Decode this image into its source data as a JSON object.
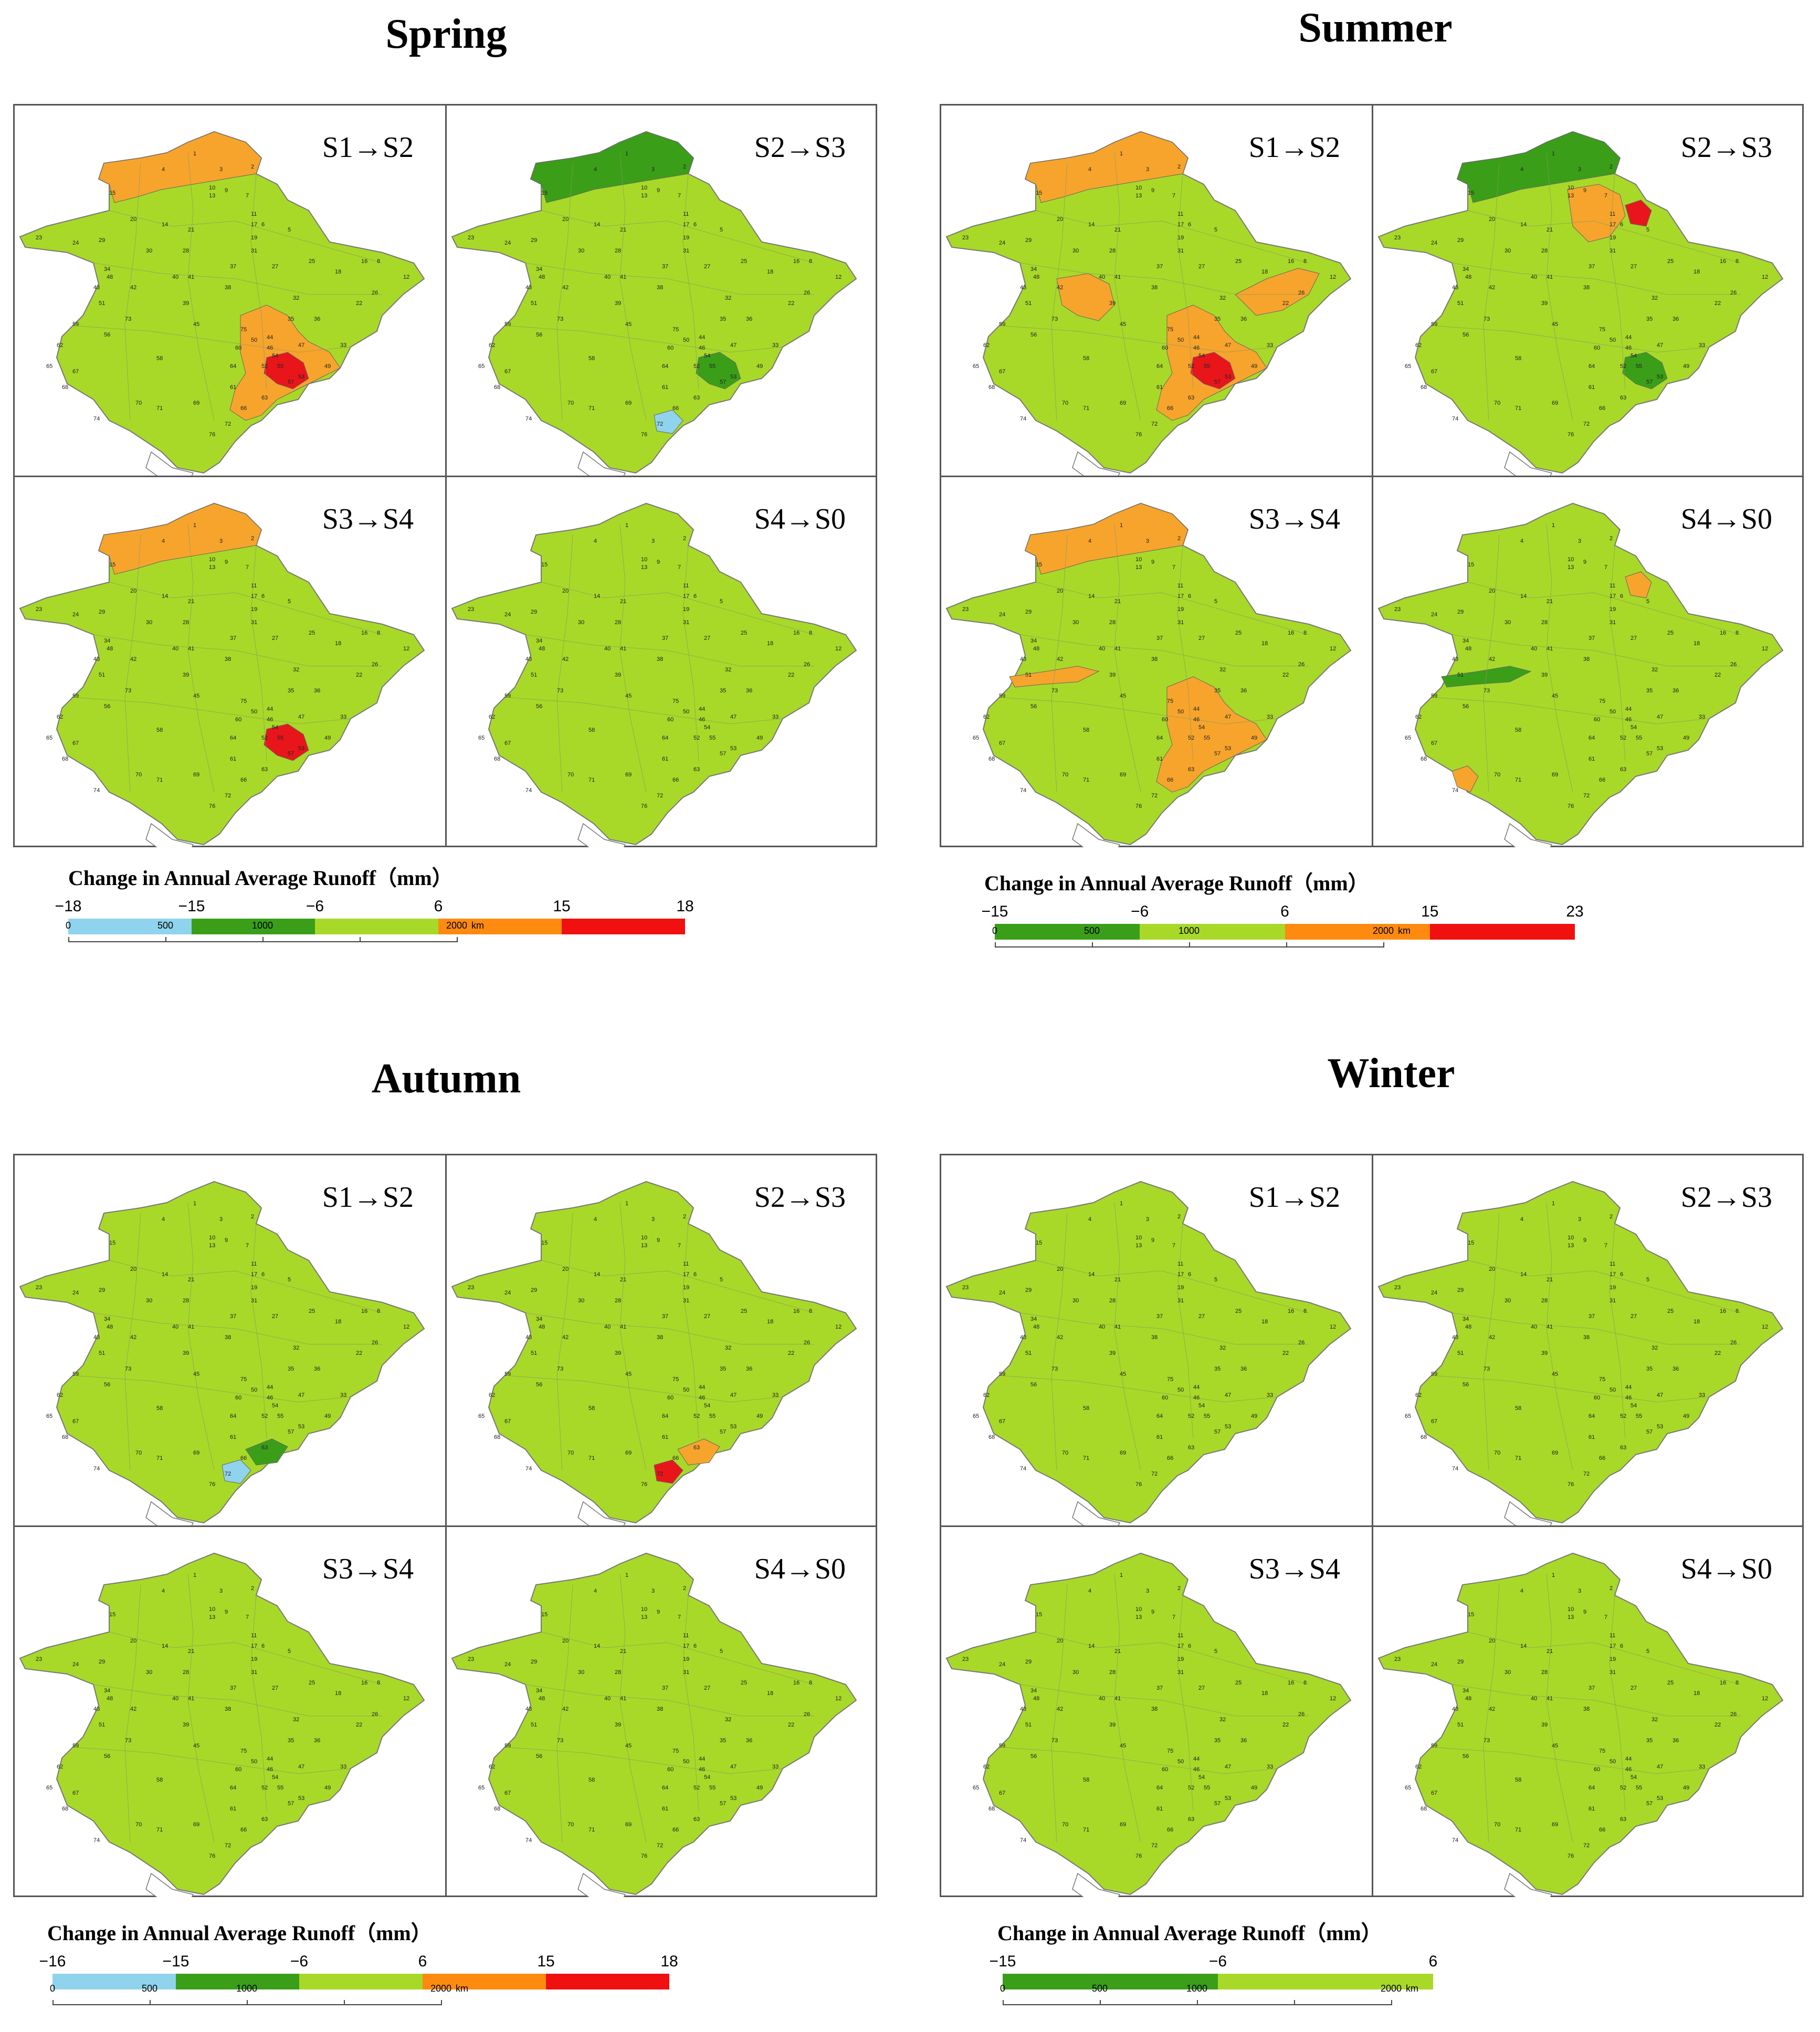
{
  "colors": {
    "light_blue": "#8fd3ec",
    "dark_green": "#3a9e18",
    "yellow_green": "#a8d828",
    "orange": "#f7a42c",
    "red": "#e8161b",
    "legend_orange": "#ff8a10",
    "legend_red": "#f01010",
    "outside": "#ffffff"
  },
  "legend_title": "Change in Annual Average Runoff（mm）",
  "scale_labels": [
    "0",
    "500",
    "1000",
    "2000",
    "km"
  ],
  "panel_labels": [
    "S1→S2",
    "S2→S3",
    "S3→S4",
    "S4→S0"
  ],
  "seasons": [
    {
      "name": "Spring",
      "legend": {
        "ticks": [
          "−18",
          "−15",
          "−6",
          "6",
          "15",
          "18"
        ],
        "segments": [
          "light_blue",
          "dark_green",
          "yellow_green",
          "legend_orange",
          "legend_red"
        ]
      },
      "panels": [
        {
          "label": "S1→S2",
          "highlights": [
            {
              "cls": "orange",
              "region": "north"
            },
            {
              "cls": "orange",
              "region": "south"
            },
            {
              "cls": "red",
              "region": "southeast"
            }
          ]
        },
        {
          "label": "S2→S3",
          "highlights": [
            {
              "cls": "dark_green",
              "region": "north"
            },
            {
              "cls": "dark_green",
              "region": "southeast"
            },
            {
              "cls": "light_blue",
              "region": "coast"
            }
          ]
        },
        {
          "label": "S3→S4",
          "highlights": [
            {
              "cls": "orange",
              "region": "north"
            },
            {
              "cls": "red",
              "region": "southeast"
            }
          ]
        },
        {
          "label": "S4→S0",
          "highlights": []
        }
      ]
    },
    {
      "name": "Summer",
      "legend": {
        "ticks": [
          "−15",
          "−6",
          "6",
          "15",
          "23"
        ],
        "segments": [
          "dark_green",
          "yellow_green",
          "legend_orange",
          "legend_red"
        ]
      },
      "panels": [
        {
          "label": "S1→S2",
          "highlights": [
            {
              "cls": "orange",
              "region": "north"
            },
            {
              "cls": "orange",
              "region": "central"
            },
            {
              "cls": "orange",
              "region": "east"
            },
            {
              "cls": "orange",
              "region": "south"
            },
            {
              "cls": "red",
              "region": "southeast"
            }
          ]
        },
        {
          "label": "S2→S3",
          "highlights": [
            {
              "cls": "dark_green",
              "region": "north"
            },
            {
              "cls": "orange",
              "region": "northcenter"
            },
            {
              "cls": "red",
              "region": "northeast"
            },
            {
              "cls": "dark_green",
              "region": "southeast"
            }
          ]
        },
        {
          "label": "S3→S4",
          "highlights": [
            {
              "cls": "orange",
              "region": "north"
            },
            {
              "cls": "orange",
              "region": "west"
            },
            {
              "cls": "orange",
              "region": "south"
            }
          ]
        },
        {
          "label": "S4→S0",
          "highlights": [
            {
              "cls": "orange",
              "region": "northeast"
            },
            {
              "cls": "dark_green",
              "region": "west"
            },
            {
              "cls": "orange",
              "region": "southwest"
            }
          ]
        }
      ]
    },
    {
      "name": "Autumn",
      "legend": {
        "ticks": [
          "−16",
          "−15",
          "−6",
          "6",
          "15",
          "18"
        ],
        "segments": [
          "light_blue",
          "dark_green",
          "yellow_green",
          "legend_orange",
          "legend_red"
        ]
      },
      "panels": [
        {
          "label": "S1→S2",
          "highlights": [
            {
              "cls": "light_blue",
              "region": "coast"
            },
            {
              "cls": "dark_green",
              "region": "coast2"
            }
          ]
        },
        {
          "label": "S2→S3",
          "highlights": [
            {
              "cls": "red",
              "region": "coast"
            },
            {
              "cls": "orange",
              "region": "coast2"
            }
          ]
        },
        {
          "label": "S3→S4",
          "highlights": []
        },
        {
          "label": "S4→S0",
          "highlights": []
        }
      ]
    },
    {
      "name": "Winter",
      "legend": {
        "ticks": [
          "−15",
          "−6",
          "6"
        ],
        "segments": [
          "dark_green",
          "yellow_green"
        ]
      },
      "panels": [
        {
          "label": "S1→S2",
          "highlights": []
        },
        {
          "label": "S2→S3",
          "highlights": []
        },
        {
          "label": "S3→S4",
          "highlights": []
        },
        {
          "label": "S4→S0",
          "highlights": []
        }
      ]
    }
  ]
}
